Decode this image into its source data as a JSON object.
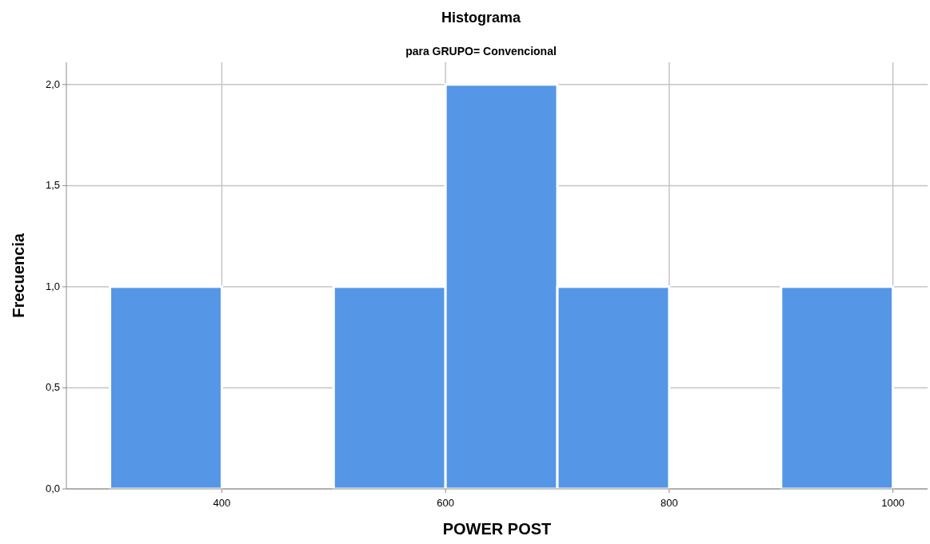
{
  "chart_data": {
    "type": "histogram",
    "title": "Histograma",
    "subtitle": "para GRUPO= Convencional",
    "xlabel": "POWER POST",
    "ylabel": "Frecuencia",
    "bins": [
      300,
      400,
      500,
      600,
      700,
      800,
      900,
      1000
    ],
    "values": [
      1,
      0,
      1,
      2,
      1,
      0,
      1
    ],
    "color": "#5596e6",
    "xlim": [
      261,
      1031
    ],
    "xticks": [
      400,
      600,
      800,
      1000
    ],
    "ylim": [
      0,
      2.11
    ],
    "yticks": [
      {
        "value": 0,
        "label": "0,0"
      },
      {
        "value": 0.5,
        "label": "0,5"
      },
      {
        "value": 1,
        "label": "1,0"
      },
      {
        "value": 1.5,
        "label": "1,5"
      },
      {
        "value": 2,
        "label": "2,0"
      }
    ],
    "grid": true
  }
}
